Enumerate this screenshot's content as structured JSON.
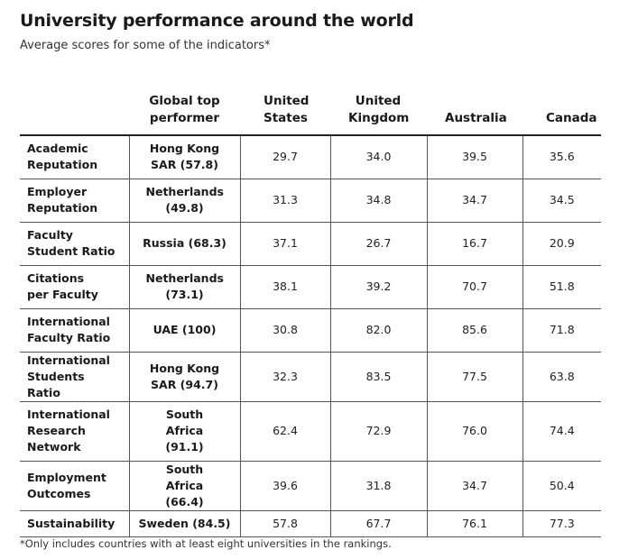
{
  "title": "University performance around the world",
  "subtitle": "Average scores for some of the indicators*",
  "columns": [
    "",
    "Global top performer",
    "United States",
    "United Kingdom",
    "Australia",
    "Canada"
  ],
  "rows": [
    {
      "label": "Academic Reputation",
      "top": "Hong Kong SAR (57.8)",
      "us": "29.7",
      "uk": "34.0",
      "au": "39.5",
      "ca": "35.6"
    },
    {
      "label": "Employer Reputation",
      "top": "Netherlands (49.8)",
      "us": "31.3",
      "uk": "34.8",
      "au": "34.7",
      "ca": "34.5"
    },
    {
      "label": "Faculty Student Ratio",
      "top": "Russia (68.3)",
      "us": "37.1",
      "uk": "26.7",
      "au": "16.7",
      "ca": "20.9"
    },
    {
      "label": "Citations per Faculty",
      "top": "Netherlands (73.1)",
      "us": "38.1",
      "uk": "39.2",
      "au": "70.7",
      "ca": "51.8"
    },
    {
      "label": "International Faculty Ratio",
      "top": "UAE (100)",
      "us": "30.8",
      "uk": "82.0",
      "au": "85.6",
      "ca": "71.8"
    },
    {
      "label": "International Students Ratio",
      "top": "Hong Kong SAR (94.7)",
      "us": "32.3",
      "uk": "83.5",
      "au": "77.5",
      "ca": "63.8"
    },
    {
      "label": "International Research Network",
      "top": "South Africa (91.1)",
      "us": "62.4",
      "uk": "72.9",
      "au": "76.0",
      "ca": "74.4"
    },
    {
      "label": "Employment Outcomes",
      "top": "South Africa (66.4)",
      "us": "39.6",
      "uk": "31.8",
      "au": "34.7",
      "ca": "50.4"
    },
    {
      "label": "Sustainability",
      "top": "Sweden (84.5)",
      "us": "57.8",
      "uk": "67.7",
      "au": "76.1",
      "ca": "77.3"
    }
  ],
  "footnote": "*Only includes countries with at least eight universities in the rankings."
}
